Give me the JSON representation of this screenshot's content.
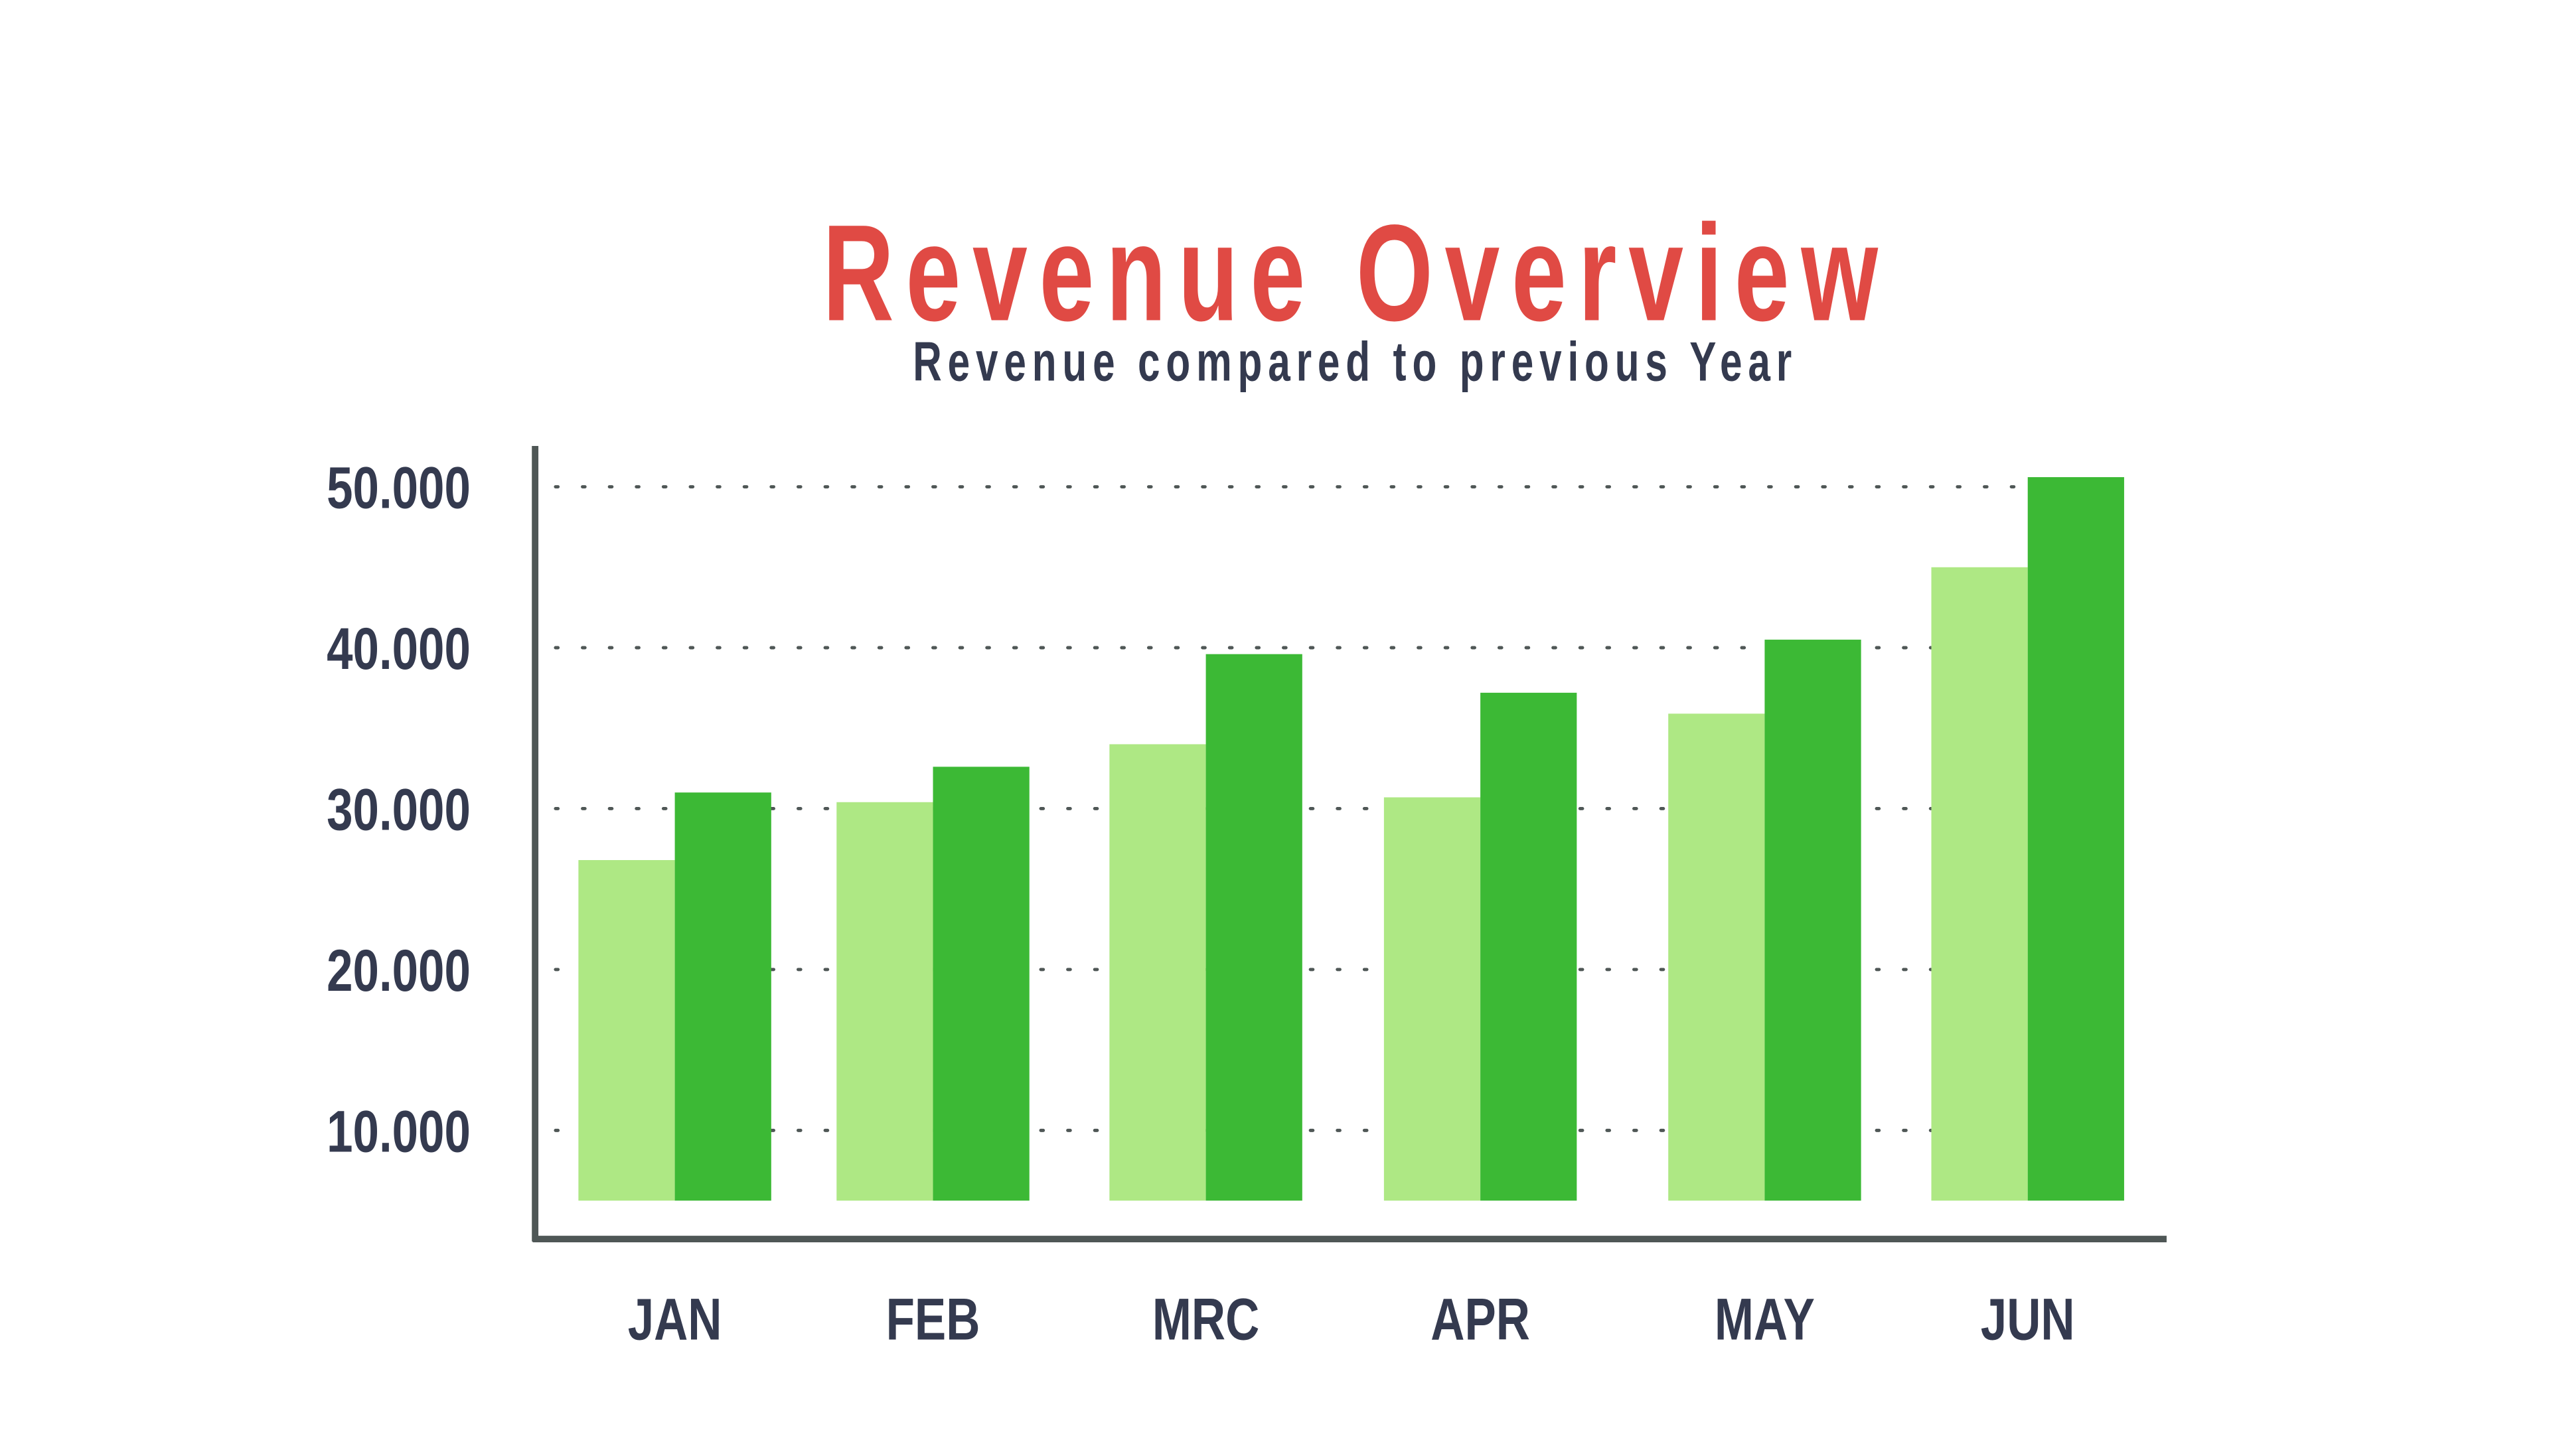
{
  "chart_data": {
    "type": "bar",
    "title": "Revenue Overview",
    "subtitle": "Revenue compared to previous Year",
    "categories": [
      "JAN",
      "FEB",
      "MRC",
      "APR",
      "MAY",
      "JUN"
    ],
    "series": [
      {
        "values": [
          26800,
          30400,
          34000,
          30700,
          35900,
          45000
        ],
        "color": "#aee884"
      },
      {
        "values": [
          31000,
          32600,
          39600,
          37200,
          40500,
          50600
        ],
        "color": "#3cb935"
      }
    ],
    "yticks": [
      10000,
      20000,
      30000,
      40000,
      50000
    ],
    "ytick_labels": [
      "10.000",
      "20.000",
      "30.000",
      "40.000",
      "50.000"
    ],
    "xlabel": "",
    "ylabel": "",
    "ylim": [
      0,
      52000
    ],
    "grid": "dotted horizontal",
    "colors": {
      "title": "#e04a44",
      "text": "#343a4f",
      "axis": "#4f5756"
    }
  }
}
